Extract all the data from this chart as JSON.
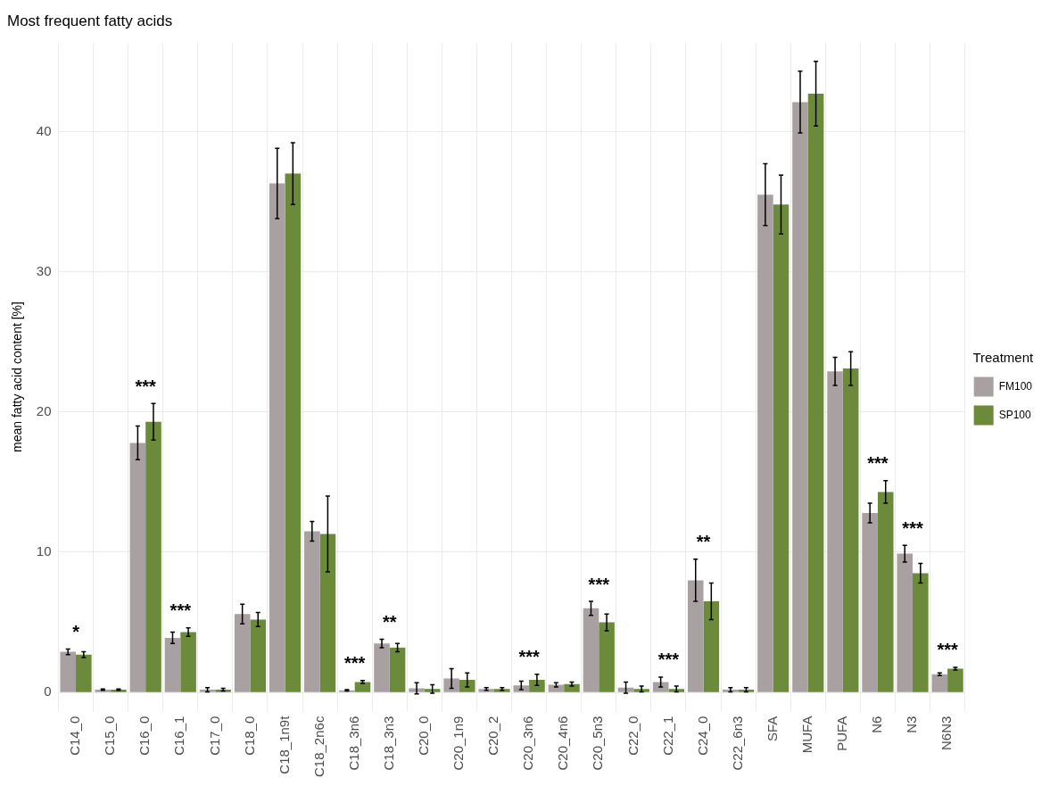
{
  "chart_data": {
    "type": "bar",
    "title": "Most frequent fatty acids",
    "ylabel": "mean fatty acid content [%]",
    "legend_title": "Treatment",
    "legend": "right",
    "grid": true,
    "categories": [
      "C14_0",
      "C15_0",
      "C16_0",
      "C16_1",
      "C17_0",
      "C18_0",
      "C18_1n9t",
      "C18_2n6c",
      "C18_3n6",
      "C18_3n3",
      "C20_0",
      "C20_1n9",
      "C20_2",
      "C20_3n6",
      "C20_4n6",
      "C20_5n3",
      "C22_0",
      "C22_1",
      "C24_0",
      "C22_6n3",
      "SFA",
      "MUFA",
      "PUFA",
      "N6",
      "N3",
      "N6N3"
    ],
    "series": [
      {
        "name": "FM100",
        "color": "#a9a1a1",
        "values": [
          2.9,
          0.2,
          17.8,
          3.9,
          0.2,
          5.6,
          36.3,
          11.5,
          0.15,
          3.5,
          0.3,
          1.0,
          0.25,
          0.5,
          0.55,
          6.0,
          0.35,
          0.75,
          8.0,
          0.2,
          35.5,
          42.1,
          22.9,
          12.8,
          9.9,
          1.3
        ],
        "errors": [
          0.2,
          0.05,
          1.2,
          0.4,
          0.15,
          0.7,
          2.5,
          0.7,
          0.05,
          0.3,
          0.4,
          0.7,
          0.1,
          0.3,
          0.15,
          0.5,
          0.4,
          0.35,
          1.5,
          0.15,
          2.2,
          2.2,
          1.0,
          0.7,
          0.6,
          0.1
        ]
      },
      {
        "name": "SP100",
        "color": "#6b8a3a",
        "values": [
          2.7,
          0.2,
          19.3,
          4.3,
          0.2,
          5.2,
          37.0,
          11.3,
          0.75,
          3.2,
          0.25,
          0.9,
          0.25,
          0.9,
          0.6,
          5.0,
          0.25,
          0.25,
          6.5,
          0.2,
          34.8,
          42.7,
          23.1,
          14.3,
          8.5,
          1.7
        ],
        "errors": [
          0.2,
          0.05,
          1.3,
          0.3,
          0.1,
          0.5,
          2.2,
          2.7,
          0.1,
          0.3,
          0.3,
          0.5,
          0.1,
          0.4,
          0.15,
          0.6,
          0.2,
          0.2,
          1.3,
          0.15,
          2.1,
          2.3,
          1.2,
          0.8,
          0.7,
          0.1
        ]
      }
    ],
    "ylim": [
      -1.3,
      46.3
    ],
    "yticks": [
      0,
      10,
      20,
      30,
      40
    ],
    "annotations": [
      "*",
      "***",
      "***",
      "***",
      "**",
      "***",
      "***",
      "***",
      "**",
      "***",
      "***",
      "***"
    ]
  }
}
